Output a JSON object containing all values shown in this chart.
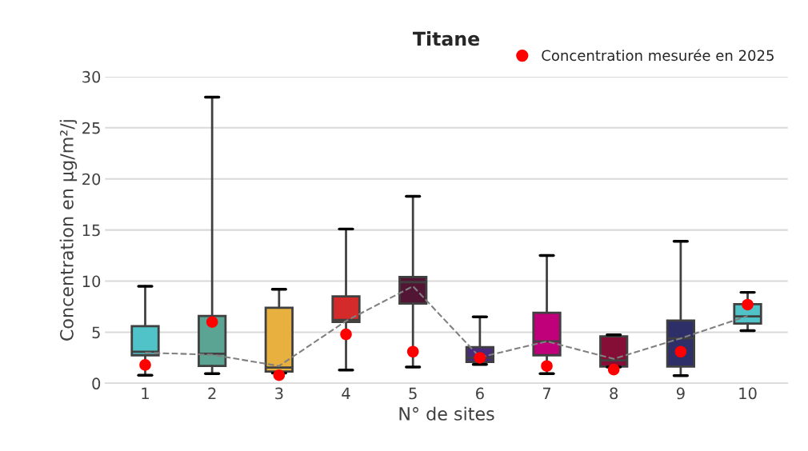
{
  "chart_data": {
    "type": "box",
    "title": "Titane",
    "xlabel": "N° de sites",
    "ylabel": "Concentration en µg/m²/j",
    "categories": [
      "1",
      "2",
      "3",
      "4",
      "5",
      "6",
      "7",
      "8",
      "9",
      "10"
    ],
    "colors": [
      "#4fc3c8",
      "#5ba393",
      "#e8b03e",
      "#d42a2a",
      "#521634",
      "#4a2a7a",
      "#c0007a",
      "#850e36",
      "#2e2e68",
      "#4fc3c8"
    ],
    "boxes": [
      {
        "low": 0.8,
        "q1": 2.75,
        "median": 3.1,
        "q3": 5.6,
        "high": 9.5
      },
      {
        "low": 0.95,
        "q1": 1.7,
        "median": 2.9,
        "q3": 6.6,
        "high": 28.0
      },
      {
        "low": 1.0,
        "q1": 1.15,
        "median": 1.55,
        "q3": 7.4,
        "high": 9.2
      },
      {
        "low": 1.3,
        "q1": 6.0,
        "median": 6.2,
        "q3": 8.5,
        "high": 15.1
      },
      {
        "low": 1.6,
        "q1": 7.8,
        "median": 9.9,
        "q3": 10.4,
        "high": 18.3
      },
      {
        "low": 1.85,
        "q1": 2.1,
        "median": 2.5,
        "q3": 3.55,
        "high": 6.5
      },
      {
        "low": 0.95,
        "q1": 2.75,
        "median": 4.1,
        "q3": 6.9,
        "high": 12.5
      },
      {
        "low": 1.6,
        "q1": 1.65,
        "median": 2.25,
        "q3": 4.6,
        "high": 4.75
      },
      {
        "low": 0.75,
        "q1": 1.65,
        "median": 4.4,
        "q3": 6.15,
        "high": 13.9
      },
      {
        "low": 5.15,
        "q1": 5.85,
        "median": 6.55,
        "q3": 7.75,
        "high": 8.9
      }
    ],
    "series": [
      {
        "type": "line",
        "color": "#808080",
        "line_style": "dashed",
        "marker": "none",
        "values": [
          3.0,
          2.8,
          1.7,
          6.1,
          9.5,
          2.55,
          4.1,
          2.4,
          4.4,
          6.6
        ]
      },
      {
        "type": "scatter",
        "name": "Concentration mesurée en 2025",
        "color": "#ff0000",
        "marker": "circle",
        "values": [
          1.8,
          6.0,
          0.8,
          4.8,
          3.1,
          2.5,
          1.7,
          1.35,
          3.1,
          7.7
        ]
      }
    ],
    "ylim": [
      0,
      30
    ],
    "yticks": [
      0,
      5,
      10,
      15,
      20,
      25,
      30
    ],
    "grid": "y",
    "legend": "top right"
  }
}
